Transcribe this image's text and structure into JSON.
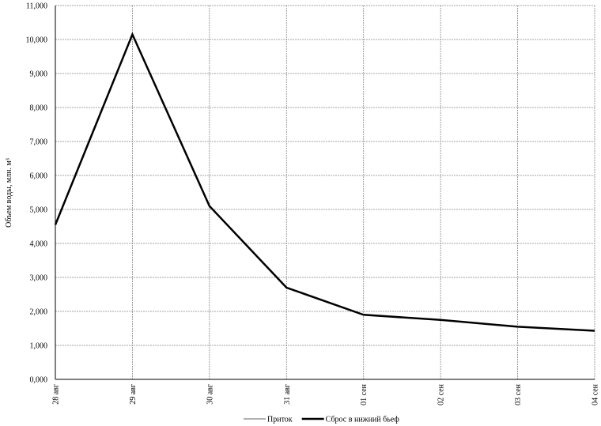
{
  "chart_data": {
    "type": "line",
    "y_label": "Объем воды, млн. м³",
    "categories": [
      "28 авг",
      "29 авг",
      "30 авг",
      "31 авг",
      "01 сен",
      "02 сен",
      "03 сен",
      "04 сен"
    ],
    "series": [
      {
        "name": "Приток",
        "color": "#808080",
        "values": [
          4.55,
          10.15,
          5.1,
          2.7,
          1.9,
          1.75,
          1.55,
          1.43
        ]
      },
      {
        "name": "Сброс в нижний бьеф",
        "color": "#000000",
        "values": [
          4.55,
          10.15,
          5.1,
          2.7,
          1.9,
          1.75,
          1.55,
          1.43
        ]
      }
    ],
    "ylim": [
      0,
      11
    ],
    "yticks": [
      {
        "value": 0,
        "label": "0,000"
      },
      {
        "value": 1,
        "label": "1,000"
      },
      {
        "value": 2,
        "label": "2,000"
      },
      {
        "value": 3,
        "label": "3,000"
      },
      {
        "value": 4,
        "label": "4,000"
      },
      {
        "value": 5,
        "label": "5,000"
      },
      {
        "value": 6,
        "label": "6,000"
      },
      {
        "value": 7,
        "label": "7,000"
      },
      {
        "value": 8,
        "label": "8,000"
      },
      {
        "value": 9,
        "label": "9,000"
      },
      {
        "value": 10,
        "label": "10,000"
      },
      {
        "value": 11,
        "label": "11,000"
      }
    ],
    "grid": true
  }
}
